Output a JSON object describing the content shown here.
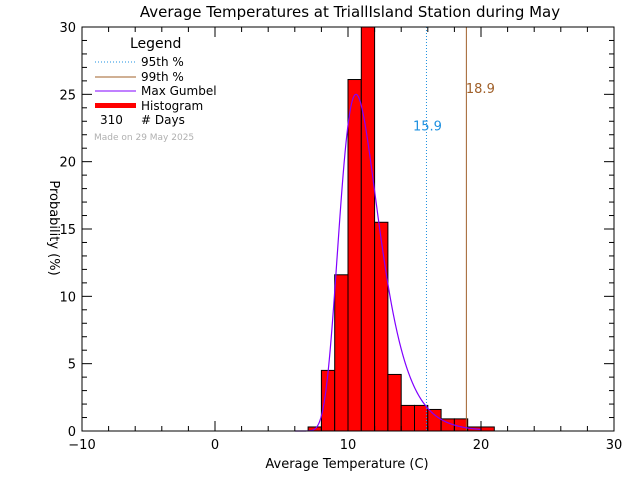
{
  "chart_data": {
    "type": "bar",
    "title": "Average Temperatures at TriallIsland Station during May",
    "xlabel": "Average Temperature (C)",
    "ylabel": "Probability (%)",
    "xlim": [
      -10,
      30
    ],
    "ylim": [
      0,
      30
    ],
    "x_ticks": [
      -10,
      0,
      10,
      20,
      30
    ],
    "y_ticks": [
      0,
      5,
      10,
      15,
      20,
      25,
      30
    ],
    "bin_width": 1,
    "histogram": {
      "name": "Histogram",
      "color": "#ff0000",
      "bins": [
        {
          "x0": 7,
          "x1": 8,
          "value": 0.3
        },
        {
          "x0": 8,
          "x1": 9,
          "value": 4.5
        },
        {
          "x0": 9,
          "x1": 10,
          "value": 11.6
        },
        {
          "x0": 10,
          "x1": 11,
          "value": 26.1
        },
        {
          "x0": 11,
          "x1": 12,
          "value": 30.0
        },
        {
          "x0": 12,
          "x1": 13,
          "value": 15.5
        },
        {
          "x0": 13,
          "x1": 14,
          "value": 4.2
        },
        {
          "x0": 14,
          "x1": 15,
          "value": 1.9
        },
        {
          "x0": 15,
          "x1": 16,
          "value": 1.9
        },
        {
          "x0": 16,
          "x1": 17,
          "value": 1.6
        },
        {
          "x0": 17,
          "x1": 18,
          "value": 0.9
        },
        {
          "x0": 18,
          "x1": 19,
          "value": 0.9
        },
        {
          "x0": 19,
          "x1": 20,
          "value": 0.3
        },
        {
          "x0": 20,
          "x1": 21,
          "value": 0.3
        }
      ]
    },
    "gumbel": {
      "name": "Max Gumbel",
      "color": "#8000ff",
      "mode": 10.6,
      "scale": 1.47,
      "peak": 25.0
    },
    "p95": {
      "name": "95th %",
      "value": 15.9,
      "label": "15.9",
      "color": "#1e90e0"
    },
    "p99": {
      "name": "99th %",
      "value": 18.9,
      "label": "18.9",
      "color": "#a0602a"
    },
    "legend": {
      "title": "Legend",
      "days_count": "310",
      "days_label": "# Days",
      "made_on": "Made on 29 May 2025"
    },
    "grid": false,
    "legend_placement": "top-left"
  }
}
